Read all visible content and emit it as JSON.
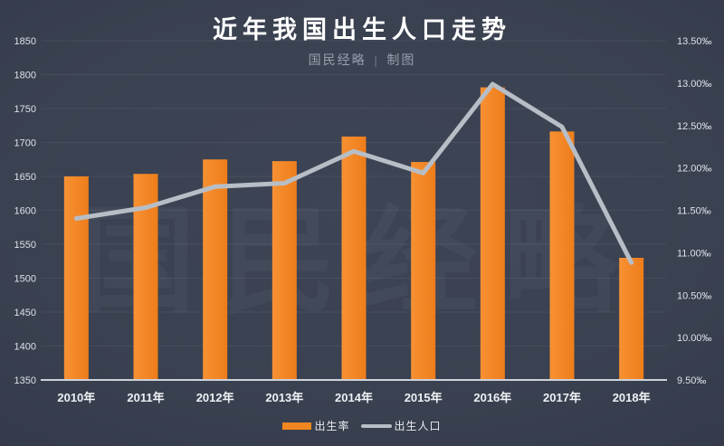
{
  "page": {
    "title": "近年我国出生人口走势",
    "subtitle_brand": "国民经略",
    "subtitle_sep": "|",
    "subtitle_credit": "制图",
    "watermark": "国民经略"
  },
  "colors": {
    "background": "#3a4150",
    "bar": "#f0861f",
    "bar_light": "#f79133",
    "bar_dark": "#ee7d1b",
    "line": "#b7bec6",
    "baseline": "#ccd2da",
    "grid": "rgba(222,230,245,0.08)",
    "title_text": "#ffffff",
    "subtitle_text": "#97a0ae",
    "axis_text": "#dde2e9"
  },
  "chart_data": {
    "type": "bar",
    "subtype": "combo-bar-line",
    "title": "近年我国出生人口走势",
    "categories": [
      "2010年",
      "2011年",
      "2012年",
      "2013年",
      "2014年",
      "2015年",
      "2016年",
      "2017年",
      "2018年"
    ],
    "series": [
      {
        "name": "出生率",
        "type": "bar",
        "axis": "right",
        "unit": "‰",
        "color": "#f0861f",
        "values": [
          11.9,
          11.93,
          12.1,
          12.08,
          12.37,
          12.07,
          12.95,
          12.43,
          10.94
        ]
      },
      {
        "name": "出生人口",
        "type": "line",
        "axis": "left",
        "unit": "万人",
        "color": "#b7bec6",
        "values": [
          1588,
          1604,
          1635,
          1640,
          1687,
          1655,
          1786,
          1723,
          1523
        ]
      }
    ],
    "left_axis": {
      "min": 1350,
      "max": 1850,
      "step": 50,
      "tick_labels": [
        "1350",
        "1400",
        "1450",
        "1500",
        "1550",
        "1600",
        "1650",
        "1700",
        "1750",
        "1800",
        "1850"
      ]
    },
    "right_axis": {
      "min": 9.5,
      "max": 13.5,
      "step": 0.5,
      "tick_labels": [
        "9.50‰",
        "10.00‰",
        "10.50‰",
        "11.00‰",
        "11.50‰",
        "12.00‰",
        "12.50‰",
        "13.00‰",
        "13.50‰"
      ]
    },
    "grid": true,
    "legend_position": "bottom"
  },
  "legend": {
    "items": [
      {
        "label": "出生率",
        "swatch": "bar"
      },
      {
        "label": "出生人口",
        "swatch": "line"
      }
    ]
  }
}
